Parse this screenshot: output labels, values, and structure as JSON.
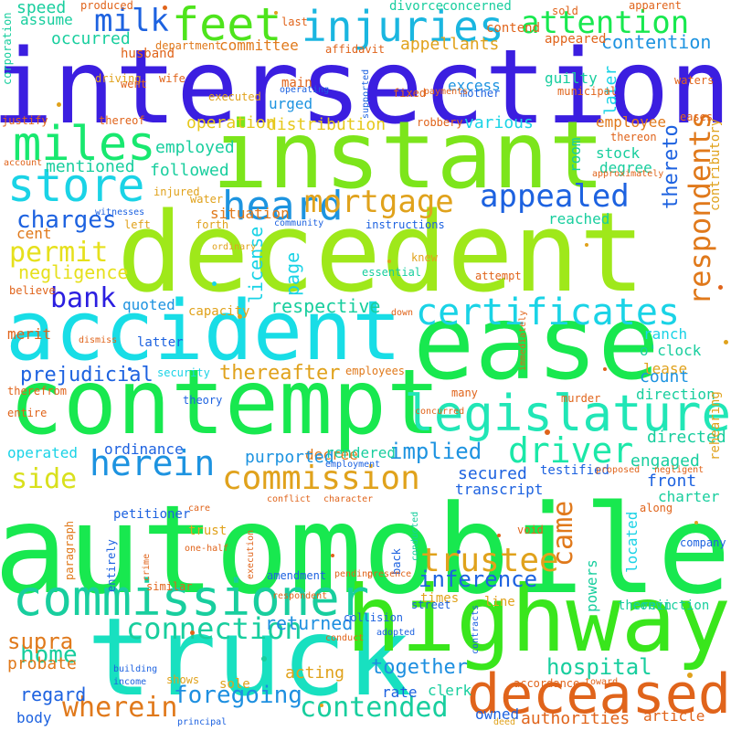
{
  "cloud": {
    "words": [
      {
        "text": "automobile",
        "color": "#18e84f",
        "vertical": false
      },
      {
        "text": "decedent",
        "color": "#9fe81a",
        "vertical": false
      },
      {
        "text": "intersection",
        "color": "#3b1ee0",
        "vertical": false
      },
      {
        "text": "instant",
        "color": "#7ce51b",
        "vertical": false
      },
      {
        "text": "ease",
        "color": "#18e84f",
        "vertical": false
      },
      {
        "text": "contempt",
        "color": "#18e84f",
        "vertical": false
      },
      {
        "text": "accident",
        "color": "#18dde6",
        "vertical": false
      },
      {
        "text": "truck",
        "color": "#18e0c0",
        "vertical": false
      },
      {
        "text": "highway",
        "color": "#39e61c",
        "vertical": false
      },
      {
        "text": "deceased",
        "color": "#e0641b",
        "vertical": false
      },
      {
        "text": "commissioner",
        "color": "#18ce9e",
        "vertical": false
      },
      {
        "text": "legislature",
        "color": "#21e6b6",
        "vertical": false
      },
      {
        "text": "miles",
        "color": "#18e86f",
        "vertical": false
      },
      {
        "text": "feet",
        "color": "#4ee41c",
        "vertical": false
      },
      {
        "text": "injuries",
        "color": "#1ab6e0",
        "vertical": false
      },
      {
        "text": "store",
        "color": "#1ad3e6",
        "vertical": false
      },
      {
        "text": "heard",
        "color": "#1d94e0",
        "vertical": false
      },
      {
        "text": "mortgage",
        "color": "#e0a21c",
        "vertical": false
      },
      {
        "text": "appealed",
        "color": "#1d62e0",
        "vertical": false
      },
      {
        "text": "certificates",
        "color": "#1ad3e6",
        "vertical": false
      },
      {
        "text": "driver",
        "color": "#1be8a8",
        "vertical": false
      },
      {
        "text": "herein",
        "color": "#1d93e0",
        "vertical": false
      },
      {
        "text": "commission",
        "color": "#e0a21c",
        "vertical": false
      },
      {
        "text": "trustee",
        "color": "#e0a21c",
        "vertical": false
      },
      {
        "text": "connection",
        "color": "#18ce9e",
        "vertical": false
      },
      {
        "text": "contended",
        "color": "#18ce9e",
        "vertical": false
      },
      {
        "text": "wherein",
        "color": "#e0791b",
        "vertical": false
      },
      {
        "text": "foregoing",
        "color": "#1d8fe0",
        "vertical": false
      },
      {
        "text": "attention",
        "color": "#18e84f",
        "vertical": false
      },
      {
        "text": "milk",
        "color": "#1d62e0",
        "vertical": false
      },
      {
        "text": "bank",
        "color": "#2b1ee0",
        "vertical": false
      },
      {
        "text": "permit",
        "color": "#e6e01c",
        "vertical": false
      },
      {
        "text": "charges",
        "color": "#1d62e0",
        "vertical": false
      },
      {
        "text": "inference",
        "color": "#1d62e0",
        "vertical": false
      },
      {
        "text": "hospital",
        "color": "#18ce9e",
        "vertical": false
      },
      {
        "text": "together",
        "color": "#1d8fe0",
        "vertical": false
      },
      {
        "text": "side",
        "color": "#d9e01c",
        "vertical": false
      },
      {
        "text": "home",
        "color": "#18ce9e",
        "vertical": false
      },
      {
        "text": "supra",
        "color": "#e0791b",
        "vertical": false
      },
      {
        "text": "returned",
        "color": "#1d8fe0",
        "vertical": false
      },
      {
        "text": "prejudicial",
        "color": "#1d62e0",
        "vertical": false
      },
      {
        "text": "implied",
        "color": "#1d93e0",
        "vertical": false
      },
      {
        "text": "thereafter",
        "color": "#e0a21c",
        "vertical": false
      },
      {
        "text": "respective",
        "color": "#18ce9e",
        "vertical": false
      },
      {
        "text": "negligence",
        "color": "#e6e01c",
        "vertical": false
      },
      {
        "text": "employed",
        "color": "#18ce9e",
        "vertical": false
      },
      {
        "text": "followed",
        "color": "#18ce9e",
        "vertical": false
      },
      {
        "text": "mentioned",
        "color": "#18ce9e",
        "vertical": false
      },
      {
        "text": "distribution",
        "color": "#e6c81c",
        "vertical": false
      },
      {
        "text": "operation",
        "color": "#e6c81c",
        "vertical": false
      },
      {
        "text": "various",
        "color": "#1ad3e6",
        "vertical": false
      },
      {
        "text": "occurred",
        "color": "#18ce9e",
        "vertical": false
      },
      {
        "text": "appellants",
        "color": "#e0a21c",
        "vertical": false
      },
      {
        "text": "contention",
        "color": "#1d93e0",
        "vertical": false
      },
      {
        "text": "committee",
        "color": "#e0791b",
        "vertical": false
      },
      {
        "text": "assume",
        "color": "#18ce9e",
        "vertical": false
      },
      {
        "text": "speed",
        "color": "#18ce9e",
        "vertical": false
      },
      {
        "text": "excess",
        "color": "#1d93e0",
        "vertical": false
      },
      {
        "text": "guilty",
        "color": "#18ce9e",
        "vertical": false
      },
      {
        "text": "stock",
        "color": "#18ce9e",
        "vertical": false
      },
      {
        "text": "degree",
        "color": "#18ce9e",
        "vertical": false
      },
      {
        "text": "reached",
        "color": "#18ce9e",
        "vertical": false
      },
      {
        "text": "employee",
        "color": "#e0791b",
        "vertical": false
      },
      {
        "text": "room",
        "color": "#18ce9e",
        "vertical": true
      },
      {
        "text": "thereto",
        "color": "#1d62e0",
        "vertical": true
      },
      {
        "text": "respondents",
        "color": "#e0791b",
        "vertical": true
      },
      {
        "text": "later",
        "color": "#1ad3e6",
        "vertical": true
      },
      {
        "text": "came",
        "color": "#e0791b",
        "vertical": true
      },
      {
        "text": "license",
        "color": "#1ad3e6",
        "vertical": true
      },
      {
        "text": "page",
        "color": "#1ad3e6",
        "vertical": true
      },
      {
        "text": "cent",
        "color": "#e0791b",
        "vertical": false
      },
      {
        "text": "decree",
        "color": "#e0791b",
        "vertical": false
      },
      {
        "text": "situation",
        "color": "#e0791b",
        "vertical": false
      },
      {
        "text": "ranch",
        "color": "#1ad3e6",
        "vertical": false
      },
      {
        "text": "o'clock",
        "color": "#18ce9e",
        "vertical": false
      },
      {
        "text": "lease",
        "color": "#e0a21c",
        "vertical": false
      },
      {
        "text": "count",
        "color": "#1d93e0",
        "vertical": false
      },
      {
        "text": "direction",
        "color": "#18ce9e",
        "vertical": false
      },
      {
        "text": "directed",
        "color": "#18ce9e",
        "vertical": false
      },
      {
        "text": "engaged",
        "color": "#18ce9e",
        "vertical": false
      },
      {
        "text": "front",
        "color": "#1d62e0",
        "vertical": false
      },
      {
        "text": "charter",
        "color": "#18ce9e",
        "vertical": false
      },
      {
        "text": "operated",
        "color": "#1ad3e6",
        "vertical": false
      },
      {
        "text": "ordinance",
        "color": "#1d62e0",
        "vertical": false
      },
      {
        "text": "purported",
        "color": "#1d93e0",
        "vertical": false
      },
      {
        "text": "rendered",
        "color": "#18ce9e",
        "vertical": false
      },
      {
        "text": "secured",
        "color": "#1d62e0",
        "vertical": false
      },
      {
        "text": "transcript",
        "color": "#1d62e0",
        "vertical": false
      },
      {
        "text": "testified",
        "color": "#1d62e0",
        "vertical": false
      },
      {
        "text": "quoted",
        "color": "#1d93e0",
        "vertical": false
      },
      {
        "text": "capacity",
        "color": "#e0a21c",
        "vertical": false
      },
      {
        "text": "merit",
        "color": "#e0641b",
        "vertical": false
      },
      {
        "text": "latter",
        "color": "#1d62e0",
        "vertical": false
      },
      {
        "text": "security",
        "color": "#1ad3e6",
        "vertical": false
      },
      {
        "text": "employees",
        "color": "#e0791b",
        "vertical": false
      },
      {
        "text": "petitioner",
        "color": "#1d62e0",
        "vertical": false
      },
      {
        "text": "urged",
        "color": "#1d93e0",
        "vertical": false
      },
      {
        "text": "main",
        "color": "#e0641b",
        "vertical": false
      },
      {
        "text": "husband",
        "color": "#e0641b",
        "vertical": false
      },
      {
        "text": "concerned",
        "color": "#18ce9e",
        "vertical": false
      },
      {
        "text": "contend",
        "color": "#e0641b",
        "vertical": false
      },
      {
        "text": "divorce",
        "color": "#18ce9e",
        "vertical": false
      },
      {
        "text": "appeared",
        "color": "#e0641b",
        "vertical": false
      },
      {
        "text": "department",
        "color": "#e0791b",
        "vertical": false
      },
      {
        "text": "mother",
        "color": "#1d62e0",
        "vertical": false
      },
      {
        "text": "thereon",
        "color": "#e0641b",
        "vertical": false
      },
      {
        "text": "probate",
        "color": "#e0791b",
        "vertical": false
      },
      {
        "text": "regard",
        "color": "#1d62e0",
        "vertical": false
      },
      {
        "text": "body",
        "color": "#1d62e0",
        "vertical": false
      },
      {
        "text": "acting",
        "color": "#e0a21c",
        "vertical": false
      },
      {
        "text": "sole",
        "color": "#e0a21c",
        "vertical": false
      },
      {
        "text": "line",
        "color": "#e0a21c",
        "vertical": false
      },
      {
        "text": "times",
        "color": "#e0a21c",
        "vertical": false
      },
      {
        "text": "therein",
        "color": "#18ce9e",
        "vertical": false
      },
      {
        "text": "conviction",
        "color": "#18ce9e",
        "vertical": false
      },
      {
        "text": "rate",
        "color": "#1d62e0",
        "vertical": false
      },
      {
        "text": "clerk",
        "color": "#18ce9e",
        "vertical": false
      },
      {
        "text": "owned",
        "color": "#1d62e0",
        "vertical": false
      },
      {
        "text": "authorities",
        "color": "#e0641b",
        "vertical": false
      },
      {
        "text": "article",
        "color": "#e0641b",
        "vertical": false
      },
      {
        "text": "trust",
        "color": "#e0a21c",
        "vertical": false
      },
      {
        "text": "powers",
        "color": "#18ce9e",
        "vertical": true
      },
      {
        "text": "located",
        "color": "#1ad3e6",
        "vertical": true
      },
      {
        "text": "rehearing",
        "color": "#e0a21c",
        "vertical": true
      },
      {
        "text": "contributory",
        "color": "#e0a21c",
        "vertical": true
      },
      {
        "text": "corporation",
        "color": "#18ce9e",
        "vertical": true
      },
      {
        "text": "paragraph",
        "color": "#e0791b",
        "vertical": true
      },
      {
        "text": "entirely",
        "color": "#1d62e0",
        "vertical": true
      },
      {
        "text": "back",
        "color": "#1d62e0",
        "vertical": true
      },
      {
        "text": "justify",
        "color": "#e0641b",
        "vertical": false
      },
      {
        "text": "thereof",
        "color": "#e0641b",
        "vertical": false
      },
      {
        "text": "executed",
        "color": "#e0a21c",
        "vertical": false
      },
      {
        "text": "eases",
        "color": "#e0641b",
        "vertical": false
      },
      {
        "text": "produced",
        "color": "#e0641b",
        "vertical": false
      },
      {
        "text": "last",
        "color": "#e0641b",
        "vertical": false
      },
      {
        "text": "sold",
        "color": "#e0641b",
        "vertical": false
      },
      {
        "text": "apparent",
        "color": "#e0641b",
        "vertical": false
      },
      {
        "text": "driving",
        "color": "#e0a21c",
        "vertical": false
      },
      {
        "text": "affidavit",
        "color": "#e0641b",
        "vertical": false
      },
      {
        "text": "waters",
        "color": "#e0641b",
        "vertical": false
      },
      {
        "text": "went",
        "color": "#e0641b",
        "vertical": false
      },
      {
        "text": "wife",
        "color": "#e0641b",
        "vertical": false
      },
      {
        "text": "operating",
        "color": "#1d62e0",
        "vertical": false
      },
      {
        "text": "fixed",
        "color": "#e0641b",
        "vertical": false
      },
      {
        "text": "payments",
        "color": "#e0641b",
        "vertical": false
      },
      {
        "text": "municipal",
        "color": "#e0641b",
        "vertical": false
      },
      {
        "text": "robbery",
        "color": "#e0641b",
        "vertical": false
      },
      {
        "text": "approximately",
        "color": "#e0641b",
        "vertical": false
      },
      {
        "text": "injured",
        "color": "#e0a21c",
        "vertical": false
      },
      {
        "text": "water",
        "color": "#e0a21c",
        "vertical": false
      },
      {
        "text": "witnesses",
        "color": "#1d62e0",
        "vertical": false
      },
      {
        "text": "forth",
        "color": "#e0a21c",
        "vertical": false
      },
      {
        "text": "community",
        "color": "#1d62e0",
        "vertical": false
      },
      {
        "text": "instructions",
        "color": "#1d62e0",
        "vertical": false
      },
      {
        "text": "knew",
        "color": "#e0a21c",
        "vertical": false
      },
      {
        "text": "left",
        "color": "#e0a21c",
        "vertical": false
      },
      {
        "text": "ordinary",
        "color": "#e0a21c",
        "vertical": false
      },
      {
        "text": "believe",
        "color": "#e0641b",
        "vertical": false
      },
      {
        "text": "essential",
        "color": "#18ce9e",
        "vertical": false
      },
      {
        "text": "attempt",
        "color": "#e0641b",
        "vertical": false
      },
      {
        "text": "down",
        "color": "#e0641b",
        "vertical": false
      },
      {
        "text": "dismiss",
        "color": "#e0641b",
        "vertical": false
      },
      {
        "text": "therefrom",
        "color": "#e0641b",
        "vertical": false
      },
      {
        "text": "entire",
        "color": "#e0641b",
        "vertical": false
      },
      {
        "text": "theory",
        "color": "#1d62e0",
        "vertical": false
      },
      {
        "text": "many",
        "color": "#e0641b",
        "vertical": false
      },
      {
        "text": "murder",
        "color": "#e0641b",
        "vertical": false
      },
      {
        "text": "concurred",
        "color": "#e0641b",
        "vertical": false
      },
      {
        "text": "proposed",
        "color": "#e0641b",
        "vertical": false
      },
      {
        "text": "negligent",
        "color": "#e0641b",
        "vertical": false
      },
      {
        "text": "account",
        "color": "#e0641b",
        "vertical": false
      },
      {
        "text": "employment",
        "color": "#1d62e0",
        "vertical": false
      },
      {
        "text": "conflict",
        "color": "#e0641b",
        "vertical": false
      },
      {
        "text": "character",
        "color": "#e0641b",
        "vertical": false
      },
      {
        "text": "care",
        "color": "#e0641b",
        "vertical": false
      },
      {
        "text": "along",
        "color": "#e0641b",
        "vertical": false
      },
      {
        "text": "company",
        "color": "#1d62e0",
        "vertical": false
      },
      {
        "text": "void",
        "color": "#e0641b",
        "vertical": false
      },
      {
        "text": "one-half",
        "color": "#e0641b",
        "vertical": false
      },
      {
        "text": "amendment",
        "color": "#1d62e0",
        "vertical": false
      },
      {
        "text": "pending",
        "color": "#e0641b",
        "vertical": false
      },
      {
        "text": "presence",
        "color": "#e0641b",
        "vertical": false
      },
      {
        "text": "street",
        "color": "#1d62e0",
        "vertical": false
      },
      {
        "text": "respondent",
        "color": "#e0641b",
        "vertical": false
      },
      {
        "text": "collision",
        "color": "#1d62e0",
        "vertical": false
      },
      {
        "text": "adopted",
        "color": "#1d62e0",
        "vertical": false
      },
      {
        "text": "conduct",
        "color": "#e0641b",
        "vertical": false
      },
      {
        "text": "building",
        "color": "#1d62e0",
        "vertical": false
      },
      {
        "text": "income",
        "color": "#1d62e0",
        "vertical": false
      },
      {
        "text": "shows",
        "color": "#e0a21c",
        "vertical": false
      },
      {
        "text": "similar",
        "color": "#e0641b",
        "vertical": false
      },
      {
        "text": "accordance",
        "color": "#e0641b",
        "vertical": false
      },
      {
        "text": "toward",
        "color": "#e0641b",
        "vertical": false
      },
      {
        "text": "deed",
        "color": "#e0a21c",
        "vertical": false
      },
      {
        "text": "principal",
        "color": "#1d62e0",
        "vertical": false
      },
      {
        "text": "crime",
        "color": "#e0641b",
        "vertical": true
      },
      {
        "text": "execution",
        "color": "#e0641b",
        "vertical": true
      },
      {
        "text": "contracts",
        "color": "#1d62e0",
        "vertical": true
      },
      {
        "text": "immediately",
        "color": "#e0641b",
        "vertical": true
      },
      {
        "text": "supported",
        "color": "#1d62e0",
        "vertical": true
      },
      {
        "text": "conducted",
        "color": "#18ce9e",
        "vertical": true
      }
    ]
  }
}
